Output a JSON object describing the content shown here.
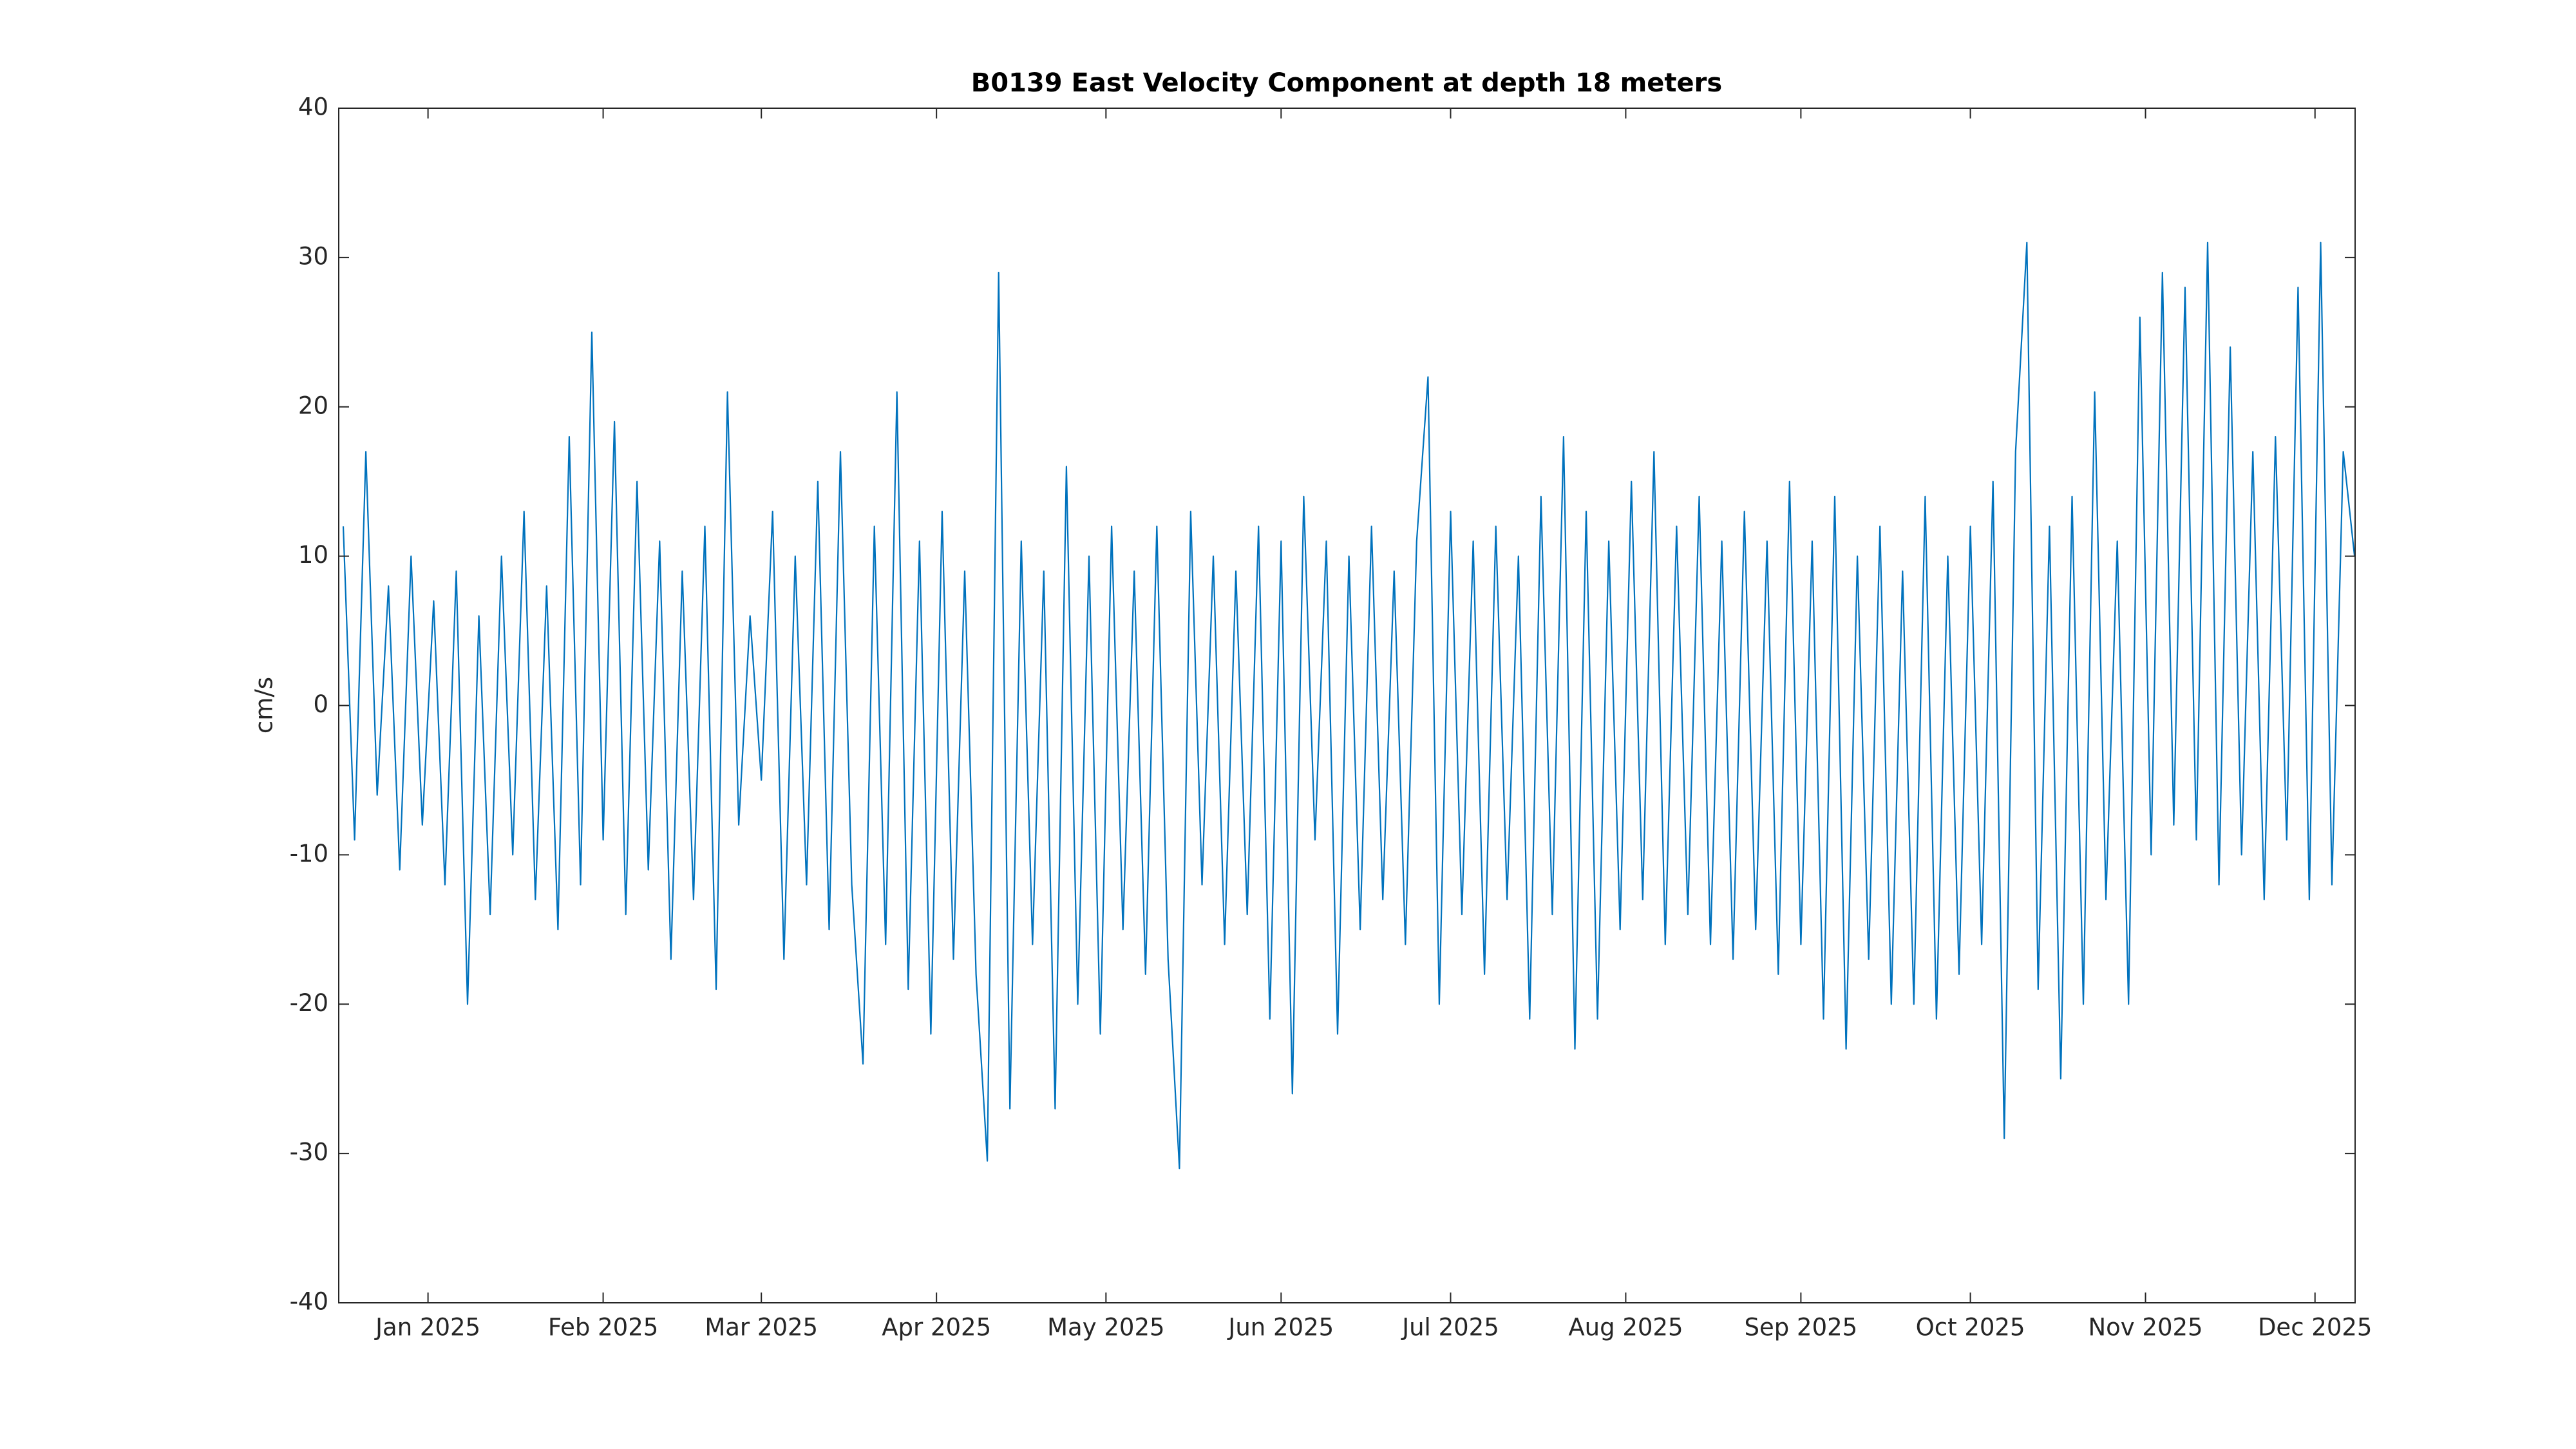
{
  "chart_data": {
    "type": "line",
    "title": "B0139 East Velocity Component at depth 18 meters",
    "ylabel": "cm/s",
    "color": "#0072bd",
    "x": [
      -15,
      -13,
      -11,
      -9,
      -7,
      -5,
      -3,
      -1,
      1,
      3,
      5,
      7,
      9,
      11,
      13,
      15,
      17,
      19,
      21,
      23,
      25,
      27,
      29,
      31,
      33,
      35,
      37,
      39,
      41,
      43,
      45,
      47,
      49,
      51,
      53,
      55,
      57,
      59,
      61,
      63,
      65,
      67,
      69,
      71,
      73,
      75,
      77,
      79,
      81,
      83,
      85,
      87,
      89,
      91,
      93,
      95,
      97,
      99,
      101,
      103,
      105,
      107,
      109,
      111,
      113,
      115,
      117,
      119,
      121,
      123,
      125,
      127,
      129,
      131,
      133,
      135,
      137,
      139,
      141,
      143,
      145,
      147,
      149,
      151,
      153,
      155,
      157,
      159,
      161,
      163,
      165,
      167,
      169,
      171,
      173,
      175,
      177,
      179,
      181,
      183,
      185,
      187,
      189,
      191,
      193,
      195,
      197,
      199,
      201,
      203,
      205,
      207,
      209,
      211,
      213,
      215,
      217,
      219,
      221,
      223,
      225,
      227,
      229,
      231,
      233,
      235,
      237,
      239,
      241,
      243,
      245,
      247,
      249,
      251,
      253,
      255,
      257,
      259,
      261,
      263,
      265,
      267,
      269,
      271,
      273,
      275,
      277,
      279,
      281,
      283,
      285,
      287,
      289,
      291,
      293,
      295,
      297,
      299,
      301,
      303,
      305,
      307,
      309,
      311,
      313,
      315,
      317,
      319,
      321,
      323,
      325,
      327,
      329,
      331,
      333,
      335,
      337,
      339,
      341
    ],
    "values": [
      12,
      -9,
      17,
      -6,
      8,
      -11,
      10,
      -8,
      7,
      -12,
      9,
      -20,
      6,
      -14,
      10,
      -10,
      13,
      -13,
      8,
      -15,
      18,
      -12,
      25,
      -9,
      19,
      -14,
      15,
      -11,
      11,
      -17,
      9,
      -13,
      12,
      -19,
      21,
      -8,
      6,
      -5,
      13,
      -17,
      10,
      -12,
      15,
      -15,
      17,
      -12,
      -24,
      12,
      -16,
      21,
      -19,
      11,
      -22,
      13,
      -17,
      9,
      -18,
      -30.5,
      29,
      -27,
      11,
      -16,
      9,
      -27,
      16,
      -20,
      10,
      -22,
      12,
      -15,
      9,
      -18,
      12,
      -17,
      -31,
      13,
      -12,
      10,
      -16,
      9,
      -14,
      12,
      -21,
      11,
      -26,
      14,
      -9,
      11,
      -22,
      10,
      -15,
      12,
      -13,
      9,
      -16,
      11,
      22,
      -20,
      13,
      -14,
      11,
      -18,
      12,
      -13,
      10,
      -21,
      14,
      -14,
      18,
      -23,
      13,
      -21,
      11,
      -15,
      15,
      -13,
      17,
      -16,
      12,
      -14,
      14,
      -16,
      11,
      -17,
      13,
      -15,
      11,
      -18,
      15,
      -16,
      11,
      -21,
      14,
      -23,
      10,
      -17,
      12,
      -20,
      9,
      -20,
      14,
      -21,
      10,
      -18,
      12,
      -16,
      15,
      -29,
      17,
      31,
      -19,
      12,
      -25,
      14,
      -20,
      21,
      -13,
      11,
      -20,
      26,
      -10,
      29,
      -8,
      28,
      -9,
      31,
      -12,
      24,
      -10,
      17,
      -13,
      18,
      -9,
      28,
      -13,
      31,
      -12,
      17,
      10
    ],
    "xlim": [
      -15.8,
      341.1
    ],
    "xticks": [
      {
        "value": 0,
        "label": "Jan 2025"
      },
      {
        "value": 31,
        "label": "Feb 2025"
      },
      {
        "value": 59,
        "label": "Mar 2025"
      },
      {
        "value": 90,
        "label": "Apr 2025"
      },
      {
        "value": 120,
        "label": "May 2025"
      },
      {
        "value": 151,
        "label": "Jun 2025"
      },
      {
        "value": 181,
        "label": "Jul 2025"
      },
      {
        "value": 212,
        "label": "Aug 2025"
      },
      {
        "value": 243,
        "label": "Sep 2025"
      },
      {
        "value": 273,
        "label": "Oct 2025"
      },
      {
        "value": 304,
        "label": "Nov 2025"
      },
      {
        "value": 334,
        "label": "Dec 2025"
      }
    ],
    "ylim": [
      -40,
      40
    ],
    "yticks": [
      -40,
      -30,
      -20,
      -10,
      0,
      10,
      20,
      30,
      40
    ],
    "grid": false
  }
}
